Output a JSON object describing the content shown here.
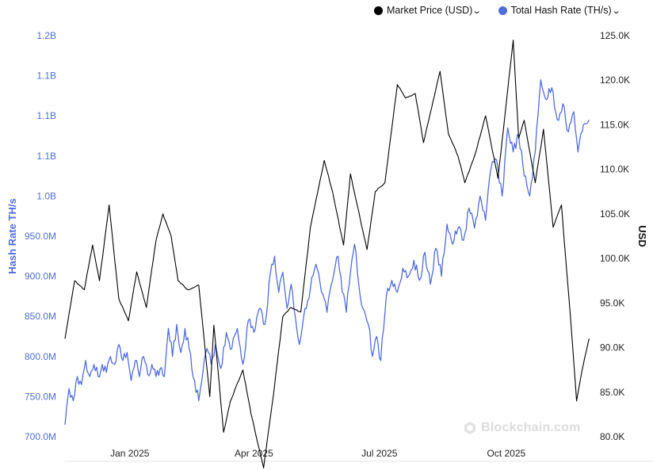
{
  "legend": {
    "price": {
      "label": "Market Price (USD)",
      "color": "#000000"
    },
    "hash": {
      "label": "Total Hash Rate (TH/s)",
      "color": "#4f6ce0"
    }
  },
  "watermark": {
    "text": "Blockchain.com",
    "icon": "blockchain-logo-icon"
  },
  "chart_data": {
    "type": "line",
    "left_axis": {
      "label": "Hash Rate TH/s",
      "color": "#4f6ce0",
      "tick_labels": [
        "1.2B",
        "1.1B",
        "1.1B",
        "1.1B",
        "1.0B",
        "950.0M",
        "900.0M",
        "850.0M",
        "800.0M",
        "750.0M",
        "700.0M"
      ],
      "ylim": [
        700000000,
        1200000000
      ]
    },
    "right_axis": {
      "label": "USD",
      "tick_labels": [
        "125.0K",
        "120.0K",
        "115.0K",
        "110.0K",
        "105.0K",
        "100.0K",
        "95.0K",
        "90.0K",
        "85.0K",
        "80.0K"
      ],
      "ylim": [
        80000,
        125000
      ]
    },
    "x_axis": {
      "tick_labels": [
        "Jan 2025",
        "Apr 2025",
        "Jul 2025",
        "Oct 2025"
      ],
      "tick_dates": [
        "2025-01-01",
        "2025-04-01",
        "2025-07-01",
        "2025-10-01"
      ],
      "range": [
        "2024-11-15",
        "2025-12-01"
      ]
    },
    "series": [
      {
        "name": "Market Price (USD)",
        "axis": "right",
        "color": "#000000",
        "points": [
          [
            "2024-11-15",
            91000
          ],
          [
            "2024-11-22",
            97500
          ],
          [
            "2024-11-29",
            96500
          ],
          [
            "2024-12-05",
            101500
          ],
          [
            "2024-12-10",
            97500
          ],
          [
            "2024-12-17",
            106000
          ],
          [
            "2024-12-24",
            95500
          ],
          [
            "2024-12-31",
            93000
          ],
          [
            "2025-01-06",
            98500
          ],
          [
            "2025-01-13",
            94500
          ],
          [
            "2025-01-20",
            102000
          ],
          [
            "2025-01-25",
            105000
          ],
          [
            "2025-01-31",
            102500
          ],
          [
            "2025-02-05",
            97500
          ],
          [
            "2025-02-12",
            96500
          ],
          [
            "2025-02-20",
            97000
          ],
          [
            "2025-02-28",
            84500
          ],
          [
            "2025-03-03",
            92500
          ],
          [
            "2025-03-10",
            80500
          ],
          [
            "2025-03-15",
            84000
          ],
          [
            "2025-03-24",
            87500
          ],
          [
            "2025-03-30",
            82500
          ],
          [
            "2025-04-08",
            76500
          ],
          [
            "2025-04-15",
            84500
          ],
          [
            "2025-04-22",
            93500
          ],
          [
            "2025-04-28",
            94500
          ],
          [
            "2025-05-05",
            94000
          ],
          [
            "2025-05-12",
            103500
          ],
          [
            "2025-05-22",
            111000
          ],
          [
            "2025-05-28",
            107500
          ],
          [
            "2025-06-05",
            101500
          ],
          [
            "2025-06-10",
            109500
          ],
          [
            "2025-06-17",
            104500
          ],
          [
            "2025-06-22",
            101000
          ],
          [
            "2025-06-28",
            107500
          ],
          [
            "2025-07-05",
            108500
          ],
          [
            "2025-07-14",
            119500
          ],
          [
            "2025-07-20",
            118000
          ],
          [
            "2025-07-27",
            118500
          ],
          [
            "2025-08-02",
            113000
          ],
          [
            "2025-08-08",
            117000
          ],
          [
            "2025-08-14",
            121000
          ],
          [
            "2025-08-20",
            114000
          ],
          [
            "2025-08-27",
            111500
          ],
          [
            "2025-09-01",
            108500
          ],
          [
            "2025-09-08",
            111500
          ],
          [
            "2025-09-16",
            116000
          ],
          [
            "2025-09-25",
            109000
          ],
          [
            "2025-10-06",
            124500
          ],
          [
            "2025-10-10",
            113500
          ],
          [
            "2025-10-14",
            115500
          ],
          [
            "2025-10-22",
            108500
          ],
          [
            "2025-10-28",
            114500
          ],
          [
            "2025-11-04",
            103500
          ],
          [
            "2025-11-10",
            106000
          ],
          [
            "2025-11-17",
            92500
          ],
          [
            "2025-11-21",
            84000
          ],
          [
            "2025-11-25",
            87500
          ],
          [
            "2025-11-30",
            91000
          ]
        ]
      },
      {
        "name": "Total Hash Rate (TH/s)",
        "axis": "left",
        "color": "#4f6ce0",
        "points": [
          [
            "2024-11-15",
            715000000
          ],
          [
            "2024-11-18",
            760000000
          ],
          [
            "2024-11-21",
            745000000
          ],
          [
            "2024-11-24",
            775000000
          ],
          [
            "2024-11-27",
            765000000
          ],
          [
            "2024-11-30",
            795000000
          ],
          [
            "2024-12-03",
            775000000
          ],
          [
            "2024-12-06",
            790000000
          ],
          [
            "2024-12-09",
            775000000
          ],
          [
            "2024-12-12",
            790000000
          ],
          [
            "2024-12-15",
            780000000
          ],
          [
            "2024-12-18",
            800000000
          ],
          [
            "2024-12-21",
            790000000
          ],
          [
            "2024-12-24",
            815000000
          ],
          [
            "2024-12-27",
            795000000
          ],
          [
            "2024-12-30",
            805000000
          ],
          [
            "2025-01-02",
            770000000
          ],
          [
            "2025-01-05",
            795000000
          ],
          [
            "2025-01-08",
            775000000
          ],
          [
            "2025-01-11",
            800000000
          ],
          [
            "2025-01-14",
            778000000
          ],
          [
            "2025-01-17",
            790000000
          ],
          [
            "2025-01-20",
            775000000
          ],
          [
            "2025-01-23",
            785000000
          ],
          [
            "2025-01-26",
            775000000
          ],
          [
            "2025-01-29",
            835000000
          ],
          [
            "2025-02-01",
            800000000
          ],
          [
            "2025-02-04",
            840000000
          ],
          [
            "2025-02-07",
            805000000
          ],
          [
            "2025-02-10",
            835000000
          ],
          [
            "2025-02-13",
            810000000
          ],
          [
            "2025-02-17",
            770000000
          ],
          [
            "2025-02-20",
            745000000
          ],
          [
            "2025-02-23",
            780000000
          ],
          [
            "2025-02-26",
            810000000
          ],
          [
            "2025-03-01",
            790000000
          ],
          [
            "2025-03-04",
            815000000
          ],
          [
            "2025-03-08",
            785000000
          ],
          [
            "2025-03-12",
            830000000
          ],
          [
            "2025-03-16",
            810000000
          ],
          [
            "2025-03-20",
            835000000
          ],
          [
            "2025-03-24",
            790000000
          ],
          [
            "2025-03-28",
            845000000
          ],
          [
            "2025-04-01",
            830000000
          ],
          [
            "2025-04-05",
            860000000
          ],
          [
            "2025-04-09",
            840000000
          ],
          [
            "2025-04-13",
            905000000
          ],
          [
            "2025-04-16",
            925000000
          ],
          [
            "2025-04-19",
            880000000
          ],
          [
            "2025-04-22",
            905000000
          ],
          [
            "2025-04-25",
            860000000
          ],
          [
            "2025-04-28",
            890000000
          ],
          [
            "2025-05-01",
            850000000
          ],
          [
            "2025-05-04",
            815000000
          ],
          [
            "2025-05-08",
            860000000
          ],
          [
            "2025-05-12",
            885000000
          ],
          [
            "2025-05-16",
            915000000
          ],
          [
            "2025-05-20",
            880000000
          ],
          [
            "2025-05-24",
            855000000
          ],
          [
            "2025-05-28",
            895000000
          ],
          [
            "2025-06-01",
            925000000
          ],
          [
            "2025-06-04",
            880000000
          ],
          [
            "2025-06-07",
            855000000
          ],
          [
            "2025-06-10",
            905000000
          ],
          [
            "2025-06-13",
            940000000
          ],
          [
            "2025-06-16",
            890000000
          ],
          [
            "2025-06-19",
            860000000
          ],
          [
            "2025-06-23",
            840000000
          ],
          [
            "2025-06-26",
            800000000
          ],
          [
            "2025-06-29",
            825000000
          ],
          [
            "2025-07-02",
            795000000
          ],
          [
            "2025-07-06",
            875000000
          ],
          [
            "2025-07-10",
            895000000
          ],
          [
            "2025-07-14",
            880000000
          ],
          [
            "2025-07-18",
            910000000
          ],
          [
            "2025-07-22",
            900000000
          ],
          [
            "2025-07-26",
            920000000
          ],
          [
            "2025-07-30",
            895000000
          ],
          [
            "2025-08-03",
            930000000
          ],
          [
            "2025-08-07",
            890000000
          ],
          [
            "2025-08-11",
            935000000
          ],
          [
            "2025-08-15",
            900000000
          ],
          [
            "2025-08-19",
            965000000
          ],
          [
            "2025-08-23",
            940000000
          ],
          [
            "2025-08-27",
            960000000
          ],
          [
            "2025-08-31",
            945000000
          ],
          [
            "2025-09-04",
            985000000
          ],
          [
            "2025-09-08",
            960000000
          ],
          [
            "2025-09-12",
            1000000000
          ],
          [
            "2025-09-16",
            970000000
          ],
          [
            "2025-09-20",
            1035000000
          ],
          [
            "2025-09-24",
            1045000000
          ],
          [
            "2025-09-28",
            1000000000
          ],
          [
            "2025-10-02",
            1085000000
          ],
          [
            "2025-10-06",
            1055000000
          ],
          [
            "2025-10-10",
            1075000000
          ],
          [
            "2025-10-14",
            1025000000
          ],
          [
            "2025-10-18",
            1000000000
          ],
          [
            "2025-10-22",
            1055000000
          ],
          [
            "2025-10-26",
            1145000000
          ],
          [
            "2025-10-30",
            1120000000
          ],
          [
            "2025-11-03",
            1135000000
          ],
          [
            "2025-11-07",
            1095000000
          ],
          [
            "2025-11-11",
            1115000000
          ],
          [
            "2025-11-15",
            1080000000
          ],
          [
            "2025-11-19",
            1105000000
          ],
          [
            "2025-11-22",
            1055000000
          ],
          [
            "2025-11-25",
            1080000000
          ],
          [
            "2025-11-28",
            1090000000
          ],
          [
            "2025-11-30",
            1095000000
          ]
        ]
      }
    ],
    "grid": false,
    "legend_position": "top-right"
  }
}
